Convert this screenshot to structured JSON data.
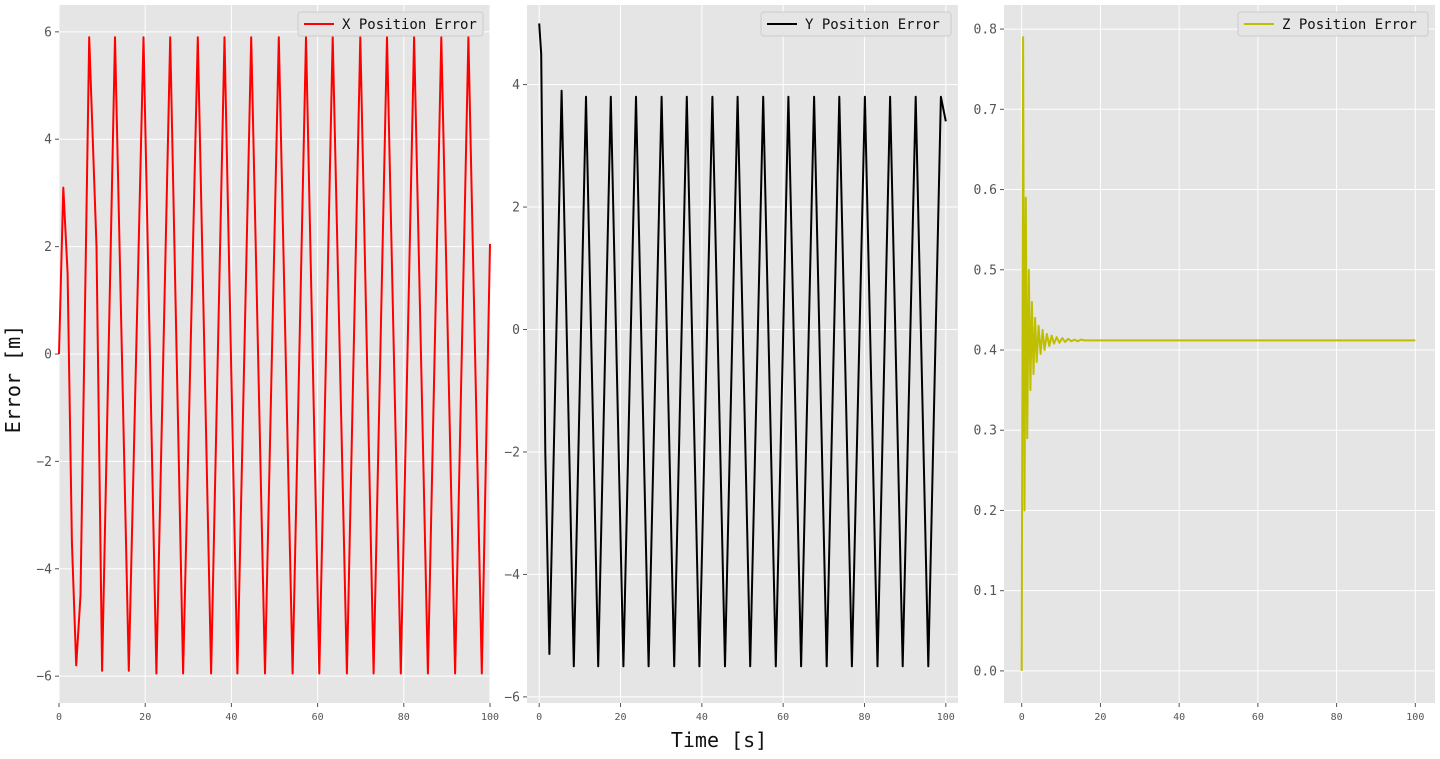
{
  "figure": {
    "ylabel": "Error [m]",
    "xlabel": "Time [s]"
  },
  "chart_data": [
    {
      "type": "line",
      "panel": "x-error",
      "series": [
        {
          "name": "X Position Error",
          "color": "#ff0000",
          "samples": 300,
          "values_note": ""
        }
      ],
      "xlim": [
        0,
        100
      ],
      "ylim": [
        -6.5,
        6.5
      ],
      "xticks": [
        0,
        20,
        40,
        60,
        80,
        100
      ],
      "yticks": [
        -6,
        -4,
        -2,
        0,
        2,
        4,
        6
      ],
      "xticklabels": [
        "0",
        "20",
        "40",
        "60",
        "80",
        "100"
      ],
      "yticklabels": [
        "−6",
        "−4",
        "−2",
        "0",
        "2",
        "4",
        "6"
      ],
      "x": [
        0,
        1,
        2,
        3,
        4,
        5,
        7,
        8.7,
        10,
        13,
        16.2,
        19.6,
        22.6,
        25.8,
        28.8,
        32.2,
        35.3,
        38.4,
        41.4,
        44.6,
        47.8,
        51,
        54.2,
        57.3,
        60.4,
        63.5,
        66.8,
        69.9,
        73,
        76.1,
        79.3,
        82.4,
        85.6,
        88.7,
        91.9,
        95,
        98.1,
        100
      ],
      "y": [
        0,
        3.1,
        1.5,
        -3.5,
        -5.8,
        -4.5,
        5.9,
        2,
        -5.9,
        5.9,
        -5.9,
        5.9,
        -5.95,
        5.9,
        -5.95,
        5.9,
        -5.95,
        5.9,
        -5.95,
        5.9,
        -5.95,
        5.9,
        -5.95,
        5.9,
        -5.95,
        5.9,
        -5.95,
        5.9,
        -5.95,
        5.9,
        -5.95,
        5.9,
        -5.95,
        5.9,
        -5.95,
        5.9,
        -5.95,
        2.05
      ],
      "grid": true,
      "legend": "top-right",
      "background": "#e5e5e5"
    },
    {
      "type": "line",
      "panel": "y-error",
      "series": [
        {
          "name": "Y Position Error",
          "color": "#000000"
        }
      ],
      "xlim": [
        -3,
        103
      ],
      "ylim": [
        -6.1,
        5.3
      ],
      "xticks": [
        0,
        20,
        40,
        60,
        80,
        100
      ],
      "yticks": [
        -6,
        -4,
        -2,
        0,
        2,
        4
      ],
      "xticklabels": [
        "0",
        "20",
        "40",
        "60",
        "80",
        "100"
      ],
      "yticklabels": [
        "−6",
        "−4",
        "−2",
        "0",
        "2",
        "4"
      ],
      "x": [
        0,
        0.5,
        1.5,
        2.5,
        5.5,
        8.5,
        11.5,
        14.5,
        17.6,
        20.7,
        23.8,
        26.9,
        30.1,
        33.2,
        36.3,
        39.4,
        42.6,
        45.7,
        48.8,
        51.9,
        55.1,
        58.2,
        61.3,
        64.4,
        67.6,
        70.7,
        73.8,
        76.9,
        80.1,
        83.2,
        86.3,
        89.4,
        92.6,
        95.7,
        98.8,
        100
      ],
      "y": [
        5,
        4.5,
        -2,
        -5.3,
        3.9,
        -5.5,
        3.8,
        -5.5,
        3.8,
        -5.5,
        3.8,
        -5.5,
        3.8,
        -5.5,
        3.8,
        -5.5,
        3.8,
        -5.5,
        3.8,
        -5.5,
        3.8,
        -5.5,
        3.8,
        -5.5,
        3.8,
        -5.5,
        3.8,
        -5.5,
        3.8,
        -5.5,
        3.8,
        -5.5,
        3.8,
        -5.5,
        3.8,
        3.4
      ],
      "grid": true,
      "legend": "top-right",
      "background": "#e5e5e5"
    },
    {
      "type": "line",
      "panel": "z-error",
      "series": [
        {
          "name": "Z Position Error",
          "color": "#bfbf00"
        }
      ],
      "xlim": [
        -4.5,
        105
      ],
      "ylim": [
        -0.04,
        0.83
      ],
      "xticks": [
        0,
        20,
        40,
        60,
        80,
        100
      ],
      "yticks": [
        0,
        0.1,
        0.2,
        0.3,
        0.4,
        0.5,
        0.6,
        0.7,
        0.8
      ],
      "xticklabels": [
        "0",
        "20",
        "40",
        "60",
        "80",
        "100"
      ],
      "yticklabels": [
        "0.0",
        "0.1",
        "0.2",
        "0.3",
        "0.4",
        "0.5",
        "0.6",
        "0.7",
        "0.8"
      ],
      "x": [
        0,
        0.35,
        0.7,
        1.05,
        1.4,
        1.8,
        2.2,
        2.6,
        3.0,
        3.4,
        3.8,
        4.3,
        4.8,
        5.3,
        5.8,
        6.4,
        7.0,
        7.6,
        8.2,
        8.9,
        9.6,
        10.3,
        11.0,
        11.8,
        12.6,
        13.4,
        14.2,
        15.1,
        16,
        18,
        20,
        100
      ],
      "y": [
        0,
        0.79,
        0.2,
        0.59,
        0.29,
        0.5,
        0.35,
        0.46,
        0.37,
        0.44,
        0.385,
        0.43,
        0.395,
        0.425,
        0.4,
        0.42,
        0.405,
        0.418,
        0.408,
        0.416,
        0.409,
        0.415,
        0.41,
        0.414,
        0.411,
        0.413,
        0.411,
        0.413,
        0.412,
        0.412,
        0.412,
        0.412
      ],
      "grid": true,
      "legend": "top-right",
      "background": "#e5e5e5"
    }
  ]
}
